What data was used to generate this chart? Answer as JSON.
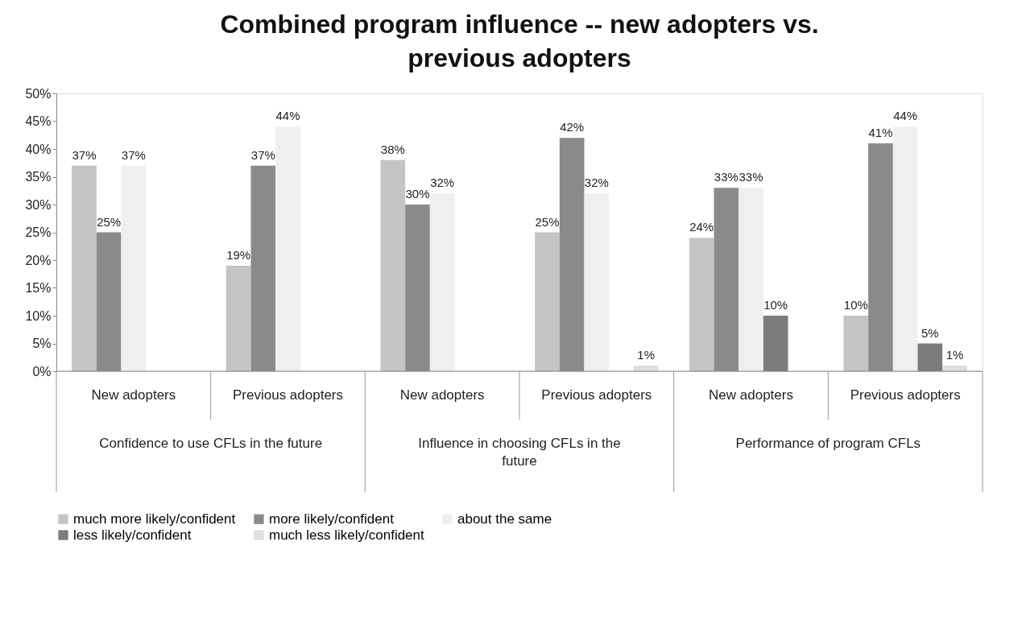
{
  "chart_data": {
    "type": "bar",
    "title": "Combined program influence -- new adopters vs. previous adopters",
    "categories": [
      "New adopters",
      "Previous adopters",
      "New adopters",
      "Previous adopters",
      "New adopters",
      "Previous adopters"
    ],
    "annotations": [
      "Confidence to use CFLs in the future",
      "Influence in choosing CFLs in the future",
      "Performance of program CFLs"
    ],
    "series": [
      {
        "name": "much more likely/confident",
        "color": "#c4c4c4",
        "values": [
          37,
          19,
          38,
          25,
          24,
          10
        ],
        "value_labels": [
          "37%",
          "19%",
          "38%",
          "25%",
          "24%",
          "10%"
        ]
      },
      {
        "name": "more likely/confident",
        "color": "#8a8a8a",
        "values": [
          25,
          37,
          30,
          42,
          33,
          41
        ],
        "value_labels": [
          "25%",
          "37%",
          "30%",
          "42%",
          "33%",
          "41%"
        ]
      },
      {
        "name": "about the same",
        "color": "#efefef",
        "values": [
          37,
          44,
          32,
          32,
          33,
          44
        ],
        "value_labels": [
          "37%",
          "44%",
          "32%",
          "32%",
          "33%",
          "44%"
        ]
      },
      {
        "name": "less likely/confident",
        "color": "#7c7c7c",
        "values": [
          null,
          null,
          null,
          null,
          10,
          5
        ],
        "value_labels": [
          null,
          null,
          null,
          null,
          "10%",
          "5%"
        ]
      },
      {
        "name": "much less likely/confident",
        "color": "#dedede",
        "values": [
          null,
          null,
          null,
          1,
          null,
          1
        ],
        "value_labels": [
          null,
          null,
          null,
          "1%",
          null,
          "1%"
        ]
      }
    ],
    "ylim": [
      0,
      50
    ],
    "yticks": [
      {
        "value": 0,
        "label": "0%"
      },
      {
        "value": 5,
        "label": "5%"
      },
      {
        "value": 10,
        "label": "10%"
      },
      {
        "value": 15,
        "label": "15%"
      },
      {
        "value": 20,
        "label": "20%"
      },
      {
        "value": 25,
        "label": "25%"
      },
      {
        "value": 30,
        "label": "30%"
      },
      {
        "value": 35,
        "label": "35%"
      },
      {
        "value": 40,
        "label": "40%"
      },
      {
        "value": 45,
        "label": "45%"
      },
      {
        "value": 50,
        "label": "50%"
      }
    ],
    "grid": false,
    "legend": "bottom"
  }
}
